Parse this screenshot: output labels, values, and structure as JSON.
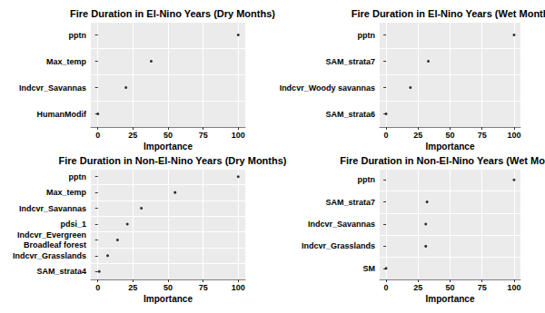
{
  "chart_data": [
    {
      "type": "scatter",
      "title": "Fire Duration in El-Nino Years (Dry Months)",
      "x_label": "Importance",
      "categories": [
        "pptn",
        "Max_temp",
        "Indcvr_Savannas",
        "HumanModif"
      ],
      "values": [
        100,
        38,
        20,
        0
      ],
      "color": "#000000",
      "orientation": "horizontal",
      "xlim": [
        -5,
        105
      ],
      "xticks": [
        0,
        25,
        50,
        75,
        100
      ],
      "grid": true
    },
    {
      "type": "scatter",
      "title": "Fire Duration in El-Nino Years (Wet Months)",
      "x_label": "Importance",
      "categories": [
        "pptn",
        "SAM_strata7",
        "Indcvr_Woody savannas",
        "SAM_strata6"
      ],
      "values": [
        100,
        33,
        19,
        0
      ],
      "color": "#000000",
      "orientation": "horizontal",
      "xlim": [
        -5,
        105
      ],
      "xticks": [
        0,
        25,
        50,
        75,
        100
      ],
      "grid": true
    },
    {
      "type": "scatter",
      "title": "Fire Duration in Non-El-Nino Years (Dry Months)",
      "x_label": "Importance",
      "categories": [
        "pptn",
        "Max_temp",
        "Indcvr_Savannas",
        "pdsi_1",
        "Indcvr_Evergreen\nBroadleaf forest",
        "Indcvr_Grasslands",
        "SAM_strata4"
      ],
      "values": [
        100,
        55,
        31,
        21,
        14,
        7,
        1
      ],
      "color": "#000000",
      "orientation": "horizontal",
      "xlim": [
        -5,
        105
      ],
      "xticks": [
        0,
        25,
        50,
        75,
        100
      ],
      "grid": true
    },
    {
      "type": "scatter",
      "title": "Fire Duration in Non-El-Nino Years (Wet Months)",
      "x_label": "Importance",
      "categories": [
        "pptn",
        "SAM_strata7",
        "Indcvr_Savannas",
        "Indcvr_Grasslands",
        "SM"
      ],
      "values": [
        100,
        32,
        31,
        31,
        0
      ],
      "color": "#000000",
      "orientation": "horizontal",
      "xlim": [
        -5,
        105
      ],
      "xticks": [
        0,
        25,
        50,
        75,
        100
      ],
      "grid": true
    }
  ]
}
